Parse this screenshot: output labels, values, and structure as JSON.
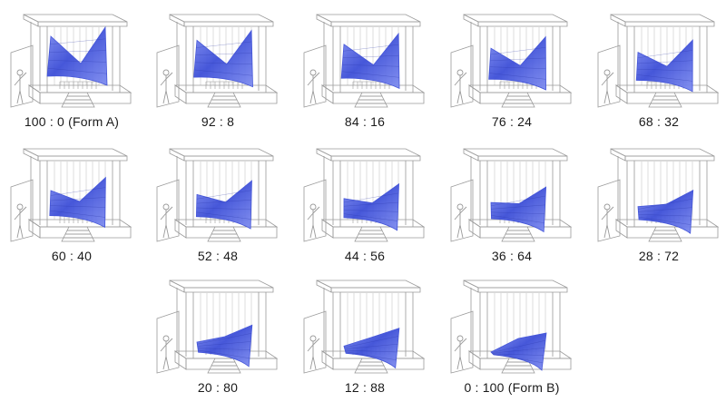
{
  "panels": [
    {
      "label": "100 : 0 (Form A)",
      "form_a": 100,
      "form_b": 0
    },
    {
      "label": "92 : 8",
      "form_a": 92,
      "form_b": 8
    },
    {
      "label": "84 : 16",
      "form_a": 84,
      "form_b": 16
    },
    {
      "label": "76 : 24",
      "form_a": 76,
      "form_b": 24
    },
    {
      "label": "68 : 32",
      "form_a": 68,
      "form_b": 32
    },
    {
      "label": "60 : 40",
      "form_a": 60,
      "form_b": 40
    },
    {
      "label": "52 : 48",
      "form_a": 52,
      "form_b": 48
    },
    {
      "label": "44 : 56",
      "form_a": 44,
      "form_b": 56
    },
    {
      "label": "36 : 64",
      "form_a": 36,
      "form_b": 64
    },
    {
      "label": "28 : 72",
      "form_a": 28,
      "form_b": 72
    },
    {
      "label": "20 : 80",
      "form_a": 20,
      "form_b": 80
    },
    {
      "label": "12 : 88",
      "form_a": 12,
      "form_b": 88
    },
    {
      "label": "0 : 100 (Form B)",
      "form_a": 0,
      "form_b": 100
    }
  ],
  "colors": {
    "canopy": "#3d4fd8",
    "canopy_light": "#7f8df0",
    "line": "#9a9a9a",
    "label": "#1a1a1a"
  }
}
